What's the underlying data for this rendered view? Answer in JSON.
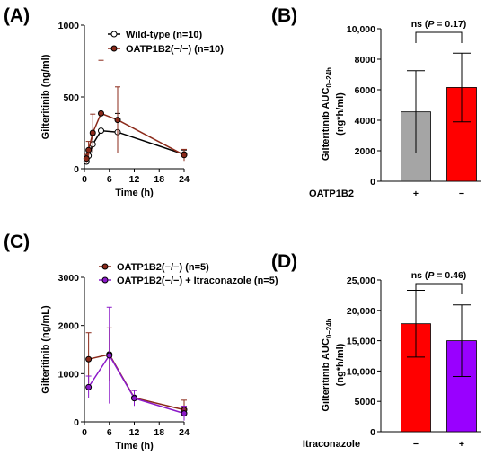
{
  "panels": {
    "A": {
      "letter": "(A)"
    },
    "B": {
      "letter": "(B)"
    },
    "C": {
      "letter": "(C)"
    },
    "D": {
      "letter": "(D)"
    }
  },
  "chart_data": [
    {
      "panel": "A",
      "type": "line",
      "xlabel": "Time (h)",
      "ylabel": "Gilteritinib (ng/ml)",
      "xlim": [
        0,
        24
      ],
      "ylim": [
        0,
        1000
      ],
      "xticks": [
        0,
        6,
        12,
        18,
        24
      ],
      "yticks": [
        0,
        500,
        1000
      ],
      "legend_position": "top-right",
      "series": [
        {
          "name": "Wild-type (n=10)",
          "color": "#000000",
          "marker": "open-circle",
          "x": [
            0.5,
            1,
            2,
            4,
            8,
            24
          ],
          "y": [
            50,
            90,
            170,
            265,
            255,
            100
          ],
          "err": [
            20,
            30,
            60,
            120,
            130,
            30
          ]
        },
        {
          "name": "OATP1B2(−/−) (n=10)",
          "color": "#8b2a1a",
          "marker": "filled-circle",
          "x": [
            0.5,
            1,
            2,
            4,
            8,
            24
          ],
          "y": [
            70,
            130,
            250,
            385,
            340,
            95
          ],
          "err": [
            30,
            60,
            130,
            370,
            230,
            40
          ]
        }
      ]
    },
    {
      "panel": "B",
      "type": "bar",
      "ylabel": "Gilteritinib AUC0–24h (ng*h/ml)",
      "ylim": [
        0,
        10000
      ],
      "yticks": [
        0,
        2000,
        4000,
        6000,
        8000,
        10000
      ],
      "ytick_labels": [
        "0",
        "2000",
        "4000",
        "6000",
        "8000",
        "10,000"
      ],
      "row_label": "OATP1B2",
      "categories": [
        "+",
        "−"
      ],
      "values": [
        4550,
        6150
      ],
      "err": [
        2700,
        2250
      ],
      "colors": [
        "#a5a5a5",
        "#ff0000"
      ],
      "annotation": {
        "prefix": "ns (",
        "p": "P",
        "rest": " = 0.17)"
      }
    },
    {
      "panel": "C",
      "type": "line",
      "xlabel": "Time (h)",
      "ylabel": "Gilteritinib (ng/mL)",
      "xlim": [
        0,
        24
      ],
      "ylim": [
        0,
        3000
      ],
      "xticks": [
        0,
        6,
        12,
        18,
        24
      ],
      "yticks": [
        0,
        1000,
        2000,
        3000
      ],
      "legend_position": "top-right",
      "series": [
        {
          "name": "OATP1B2(−/−) (n=5)",
          "color": "#8b2a1a",
          "marker": "filled-circle",
          "x": [
            1,
            6,
            12,
            24
          ],
          "y": [
            1300,
            1400,
            500,
            250
          ],
          "err": [
            550,
            550,
            150,
            200
          ]
        },
        {
          "name": "OATP1B2(−/−) + Itraconazole (n=5)",
          "color": "#8b19c9",
          "marker": "filled-circle",
          "x": [
            1,
            6,
            12,
            24
          ],
          "y": [
            720,
            1380,
            490,
            175
          ],
          "err": [
            230,
            1000,
            160,
            150
          ]
        }
      ]
    },
    {
      "panel": "D",
      "type": "bar",
      "ylabel": "Gilteritinib AUC0–24h (ng*h/ml)",
      "ylim": [
        0,
        25000
      ],
      "yticks": [
        0,
        5000,
        10000,
        15000,
        20000,
        25000
      ],
      "ytick_labels": [
        "0",
        "5000",
        "10,000",
        "15,000",
        "20,000",
        "25,000"
      ],
      "row_label": "Itraconazole",
      "categories": [
        "−",
        "+"
      ],
      "values": [
        17800,
        15000
      ],
      "err": [
        5500,
        5900
      ],
      "colors": [
        "#ff0000",
        "#9900ff"
      ],
      "annotation": {
        "prefix": "ns (",
        "p": "P",
        "rest": " = 0.46)"
      }
    }
  ]
}
